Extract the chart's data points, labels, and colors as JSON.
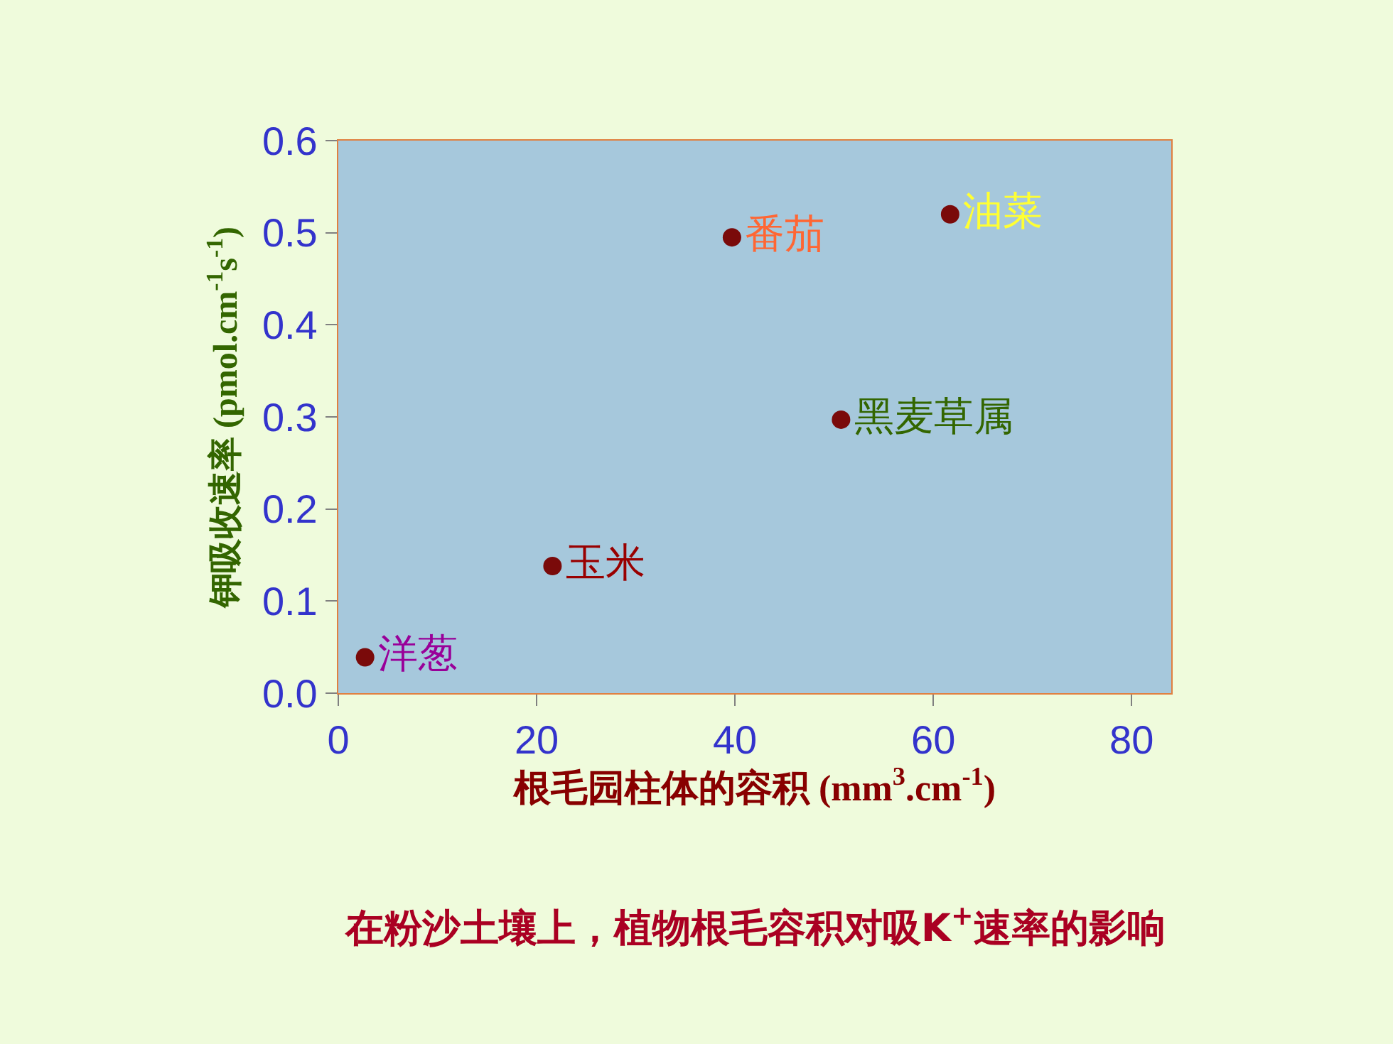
{
  "chart_data": {
    "type": "scatter",
    "xlabel": "根毛园柱体的容积 (mm$^{3}$.cm$^{-1}$)",
    "ylabel": "钾吸收速率 (pmol.cm$^{-1}$s$^{-1}$)",
    "annotations": [
      "在粉沙土壤上，植物根毛容积对吸K$^{+}$速率的影响"
    ],
    "xlim": [
      0,
      84
    ],
    "xticks": [
      0,
      20,
      40,
      60,
      80
    ],
    "ylim": [
      0,
      0.6
    ],
    "yticks": [
      {
        "value": 0,
        "label": "0.0"
      },
      0.1,
      0.2,
      0.3,
      0.4,
      0.5,
      0.6
    ],
    "marker": "circle",
    "legend": false,
    "grid": false,
    "series": [
      {
        "name": "洋葱",
        "color": "#7a0a0a",
        "x": [
          2.7
        ],
        "values": [
          0.039
        ]
      },
      {
        "name": "玉米",
        "color": "#7a0a0a",
        "x": [
          21.6
        ],
        "values": [
          0.138
        ]
      },
      {
        "name": "番茄",
        "color": "#7a0a0a",
        "x": [
          39.7
        ],
        "values": [
          0.495
        ]
      },
      {
        "name": "油菜",
        "color": "#7a0a0a",
        "x": [
          61.7
        ],
        "values": [
          0.52
        ]
      },
      {
        "name": "黑麦草属",
        "color": "#7a0a0a",
        "x": [
          50.7
        ],
        "values": [
          0.297
        ]
      }
    ]
  }
}
